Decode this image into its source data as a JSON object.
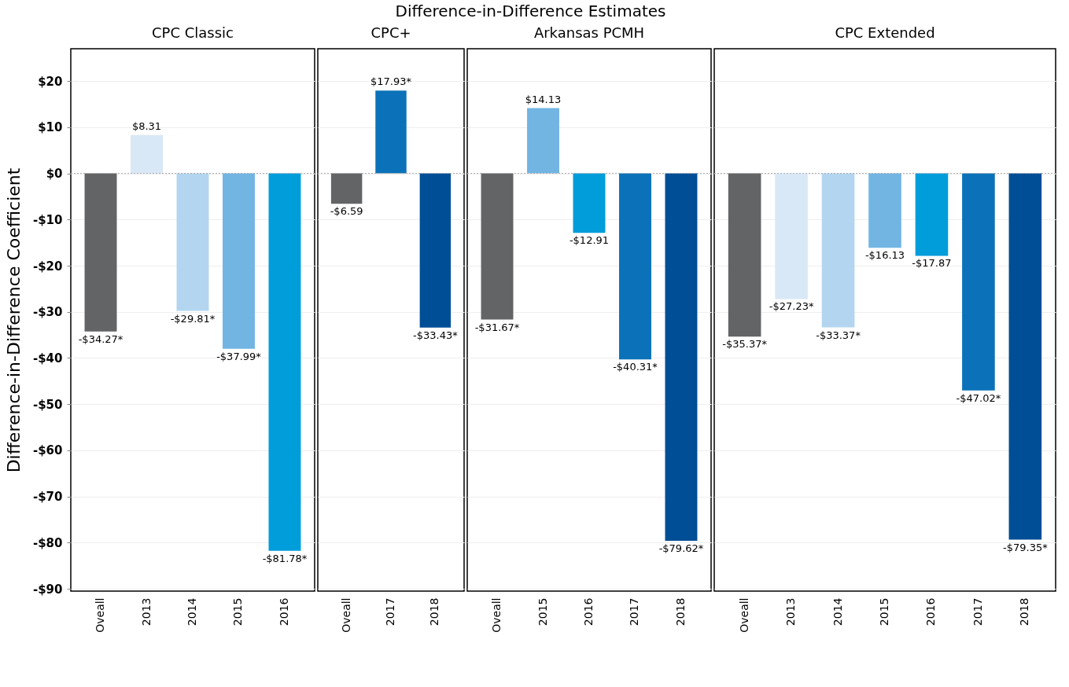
{
  "chart_data": [
    {
      "type": "bar",
      "title": "CPC Classic",
      "ylabel": "Difference-in-Difference Coefficient",
      "annotations": [
        "Difference-in-Difference Estimates"
      ],
      "categories": [
        "Oveall",
        "2013",
        "2014",
        "2015",
        "2016"
      ],
      "values": [
        -34.27,
        8.31,
        -29.81,
        -37.99,
        -81.78
      ],
      "colors": [
        "#636466",
        "#d9e8f6",
        "#b3d5ef",
        "#72b5e3",
        "#009ddb"
      ],
      "value_labels": [
        "-$34.27*",
        "$8.31",
        "-$29.81*",
        "-$37.99*",
        "-$81.78*"
      ],
      "ylim": [
        -90.5,
        27
      ],
      "yticks": [
        {
          "value": 20,
          "label": "$20"
        },
        {
          "value": 10,
          "label": "$10"
        },
        {
          "value": 0,
          "label": "$0"
        },
        {
          "value": -10,
          "label": "-$10"
        },
        {
          "value": -20,
          "label": "-$20"
        },
        {
          "value": -30,
          "label": "-$30"
        },
        {
          "value": -40,
          "label": "-$40"
        },
        {
          "value": -50,
          "label": "-$50"
        },
        {
          "value": -60,
          "label": "-$60"
        },
        {
          "value": -70,
          "label": "-$70"
        },
        {
          "value": -80,
          "label": "-$80"
        },
        {
          "value": -90,
          "label": "-$90"
        }
      ],
      "grid": "y",
      "ref_lines": [
        {
          "axis": "y",
          "value": 0,
          "line_style": "dotted",
          "color": "#aaaaaa"
        }
      ]
    },
    {
      "type": "bar",
      "title": "CPC+",
      "categories": [
        "Oveall",
        "2017",
        "2018"
      ],
      "values": [
        -6.59,
        17.93,
        -33.43
      ],
      "colors": [
        "#636466",
        "#0b72b9",
        "#004e96"
      ],
      "value_labels": [
        "-$6.59",
        "$17.93*",
        "-$33.43*"
      ],
      "ylim": [
        -90.5,
        27
      ],
      "yticks": [
        20,
        10,
        0,
        -10,
        -20,
        -30,
        -40,
        -50,
        -60,
        -70,
        -80,
        -90
      ],
      "tick_labels": "x",
      "grid": "y",
      "ref_lines": [
        {
          "axis": "y",
          "value": 0,
          "line_style": "dotted",
          "color": "#aaaaaa"
        }
      ]
    },
    {
      "type": "bar",
      "title": "Arkansas PCMH",
      "categories": [
        "Oveall",
        "2015",
        "2016",
        "2017",
        "2018"
      ],
      "values": [
        -31.67,
        14.13,
        -12.91,
        -40.31,
        -79.62
      ],
      "colors": [
        "#636466",
        "#72b5e3",
        "#009ddb",
        "#0b72b9",
        "#004e96"
      ],
      "value_labels": [
        "-$31.67*",
        "$14.13",
        "-$12.91",
        "-$40.31*",
        "-$79.62*"
      ],
      "ylim": [
        -90.5,
        27
      ],
      "yticks": [
        20,
        10,
        0,
        -10,
        -20,
        -30,
        -40,
        -50,
        -60,
        -70,
        -80,
        -90
      ],
      "tick_labels": "x",
      "grid": "y",
      "ref_lines": [
        {
          "axis": "y",
          "value": 0,
          "line_style": "dotted",
          "color": "#aaaaaa"
        }
      ]
    },
    {
      "type": "bar",
      "title": "CPC Extended",
      "categories": [
        "Oveall",
        "2013",
        "2014",
        "2015",
        "2016",
        "2017",
        "2018"
      ],
      "values": [
        -35.37,
        -27.23,
        -33.37,
        -16.13,
        -17.87,
        -47.02,
        -79.35
      ],
      "colors": [
        "#636466",
        "#d9e8f6",
        "#b3d5ef",
        "#72b5e3",
        "#009ddb",
        "#0b72b9",
        "#004e96"
      ],
      "value_labels": [
        "-$35.37*",
        "-$27.23*",
        "-$33.37*",
        "-$16.13",
        "-$17.87",
        "-$47.02*",
        "-$79.35*"
      ],
      "ylim": [
        -90.5,
        27
      ],
      "yticks": [
        20,
        10,
        0,
        -10,
        -20,
        -30,
        -40,
        -50,
        -60,
        -70,
        -80,
        -90
      ],
      "tick_labels": "x",
      "grid": "y",
      "ref_lines": [
        {
          "axis": "y",
          "value": 0,
          "line_style": "dotted",
          "color": "#aaaaaa"
        }
      ]
    }
  ]
}
